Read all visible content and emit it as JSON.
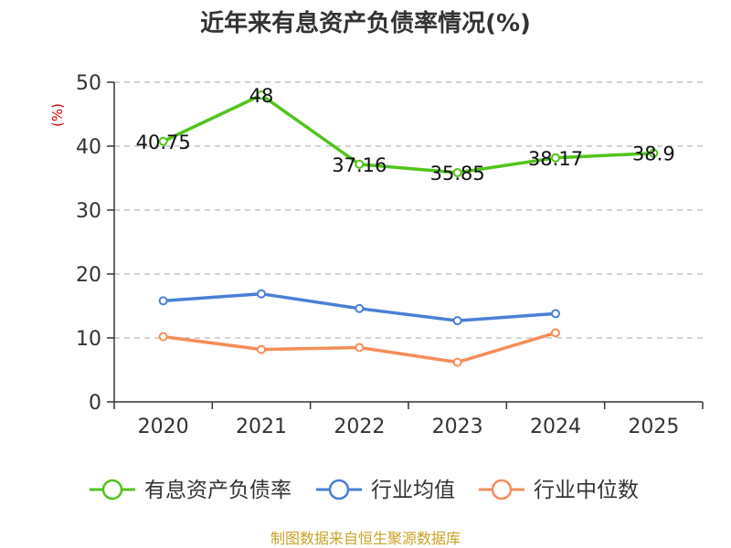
{
  "chart_data": {
    "type": "line",
    "title": "近年来有息资产负债率情况(%)",
    "ylabel": "(%)",
    "xlabel": "",
    "categories": [
      "2020",
      "2021",
      "2022",
      "2023",
      "2024",
      "2025"
    ],
    "yticks": [
      "0",
      "10",
      "20",
      "30",
      "40",
      "50"
    ],
    "ylim": [
      0,
      50
    ],
    "grid": true,
    "legend_position": "bottom",
    "series": [
      {
        "name": "有息资产负债率",
        "color": "#52c41a",
        "values": [
          40.75,
          48,
          37.16,
          35.85,
          38.17,
          38.9
        ],
        "labels": [
          "40.75",
          "48",
          "37.16",
          "35.85",
          "38.17",
          "38.9"
        ]
      },
      {
        "name": "行业均值",
        "color": "#4a7fd6",
        "values": [
          15.8,
          16.9,
          14.6,
          12.7,
          13.8,
          null
        ]
      },
      {
        "name": "行业中位数",
        "color": "#f58d5a",
        "values": [
          10.2,
          8.2,
          8.5,
          6.2,
          10.8,
          null
        ]
      }
    ],
    "source": "制图数据来自恒生聚源数据库"
  }
}
